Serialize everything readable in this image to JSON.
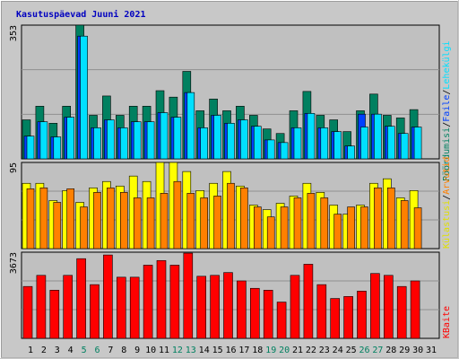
{
  "chart_data": [
    {
      "type": "bar",
      "title": "Kasutuspäevad Juuni 2021",
      "ylim": [
        0,
        353
      ],
      "yticks": [
        353
      ],
      "grid": true,
      "legend_separator": "/",
      "series": [
        {
          "name": "Lehekülgi",
          "color": "#00e0ff",
          "role": "front",
          "values": [
            60,
            98,
            58,
            110,
            324,
            82,
            103,
            82,
            98,
            98,
            122,
            110,
            175,
            82,
            115,
            94,
            103,
            86,
            50,
            43,
            82,
            120,
            82,
            72,
            34,
            84,
            118,
            86,
            67,
            84,
            null
          ]
        },
        {
          "name": "Faile",
          "color": "#0040ff",
          "role": "middle",
          "values": [
            60,
            98,
            58,
            110,
            324,
            82,
            103,
            82,
            98,
            98,
            122,
            110,
            175,
            82,
            115,
            94,
            103,
            86,
            50,
            43,
            82,
            120,
            82,
            72,
            34,
            118,
            118,
            86,
            67,
            84,
            null
          ]
        },
        {
          "name": "Pöördumisi",
          "color": "#008060",
          "role": "back",
          "values": [
            103,
            139,
            94,
            139,
            353,
            115,
            166,
            115,
            139,
            139,
            180,
            163,
            231,
            127,
            158,
            127,
            139,
            115,
            79,
            67,
            127,
            178,
            115,
            103,
            72,
            127,
            171,
            115,
            108,
            130,
            null
          ]
        }
      ]
    },
    {
      "type": "bar",
      "ylim": [
        0,
        95
      ],
      "yticks": [
        95
      ],
      "grid": true,
      "legend_separator": "/",
      "series": [
        {
          "name": "Arvutid",
          "color": "#ff8000",
          "role": "front",
          "values": [
            66,
            67,
            51,
            66,
            46,
            62,
            67,
            62,
            56,
            56,
            61,
            74,
            61,
            56,
            58,
            72,
            67,
            46,
            35,
            46,
            56,
            61,
            56,
            38,
            46,
            46,
            67,
            67,
            53,
            45,
            null
          ]
        },
        {
          "name": "Külastusi",
          "color": "#ffff00",
          "role": "back",
          "values": [
            72,
            72,
            53,
            64,
            51,
            67,
            74,
            69,
            80,
            74,
            95,
            95,
            85,
            64,
            72,
            85,
            69,
            48,
            43,
            50,
            58,
            72,
            62,
            48,
            38,
            48,
            72,
            77,
            56,
            64,
            null
          ]
        }
      ]
    },
    {
      "type": "bar",
      "ylim": [
        0,
        3673
      ],
      "yticks": [
        3673
      ],
      "grid": true,
      "categories": [
        "1",
        "2",
        "3",
        "4",
        "5",
        "6",
        "7",
        "8",
        "9",
        "10",
        "11",
        "12",
        "13",
        "14",
        "15",
        "16",
        "17",
        "18",
        "19",
        "20",
        "21",
        "22",
        "23",
        "24",
        "25",
        "26",
        "27",
        "28",
        "29",
        "30",
        "31"
      ],
      "category_colors": [
        "#000",
        "#000",
        "#000",
        "#000",
        "#008060",
        "#008060",
        "#000",
        "#000",
        "#000",
        "#000",
        "#000",
        "#008060",
        "#008060",
        "#000",
        "#000",
        "#000",
        "#000",
        "#000",
        "#008060",
        "#008060",
        "#000",
        "#000",
        "#000",
        "#000",
        "#000",
        "#008060",
        "#008060",
        "#000",
        "#000",
        "#000",
        "#000"
      ],
      "series": [
        {
          "name": "KBaite",
          "color": "#ff0000",
          "role": "single",
          "values": [
            2212,
            2686,
            2054,
            2686,
            3397,
            2291,
            3555,
            2607,
            2607,
            3120,
            3318,
            3120,
            3633,
            2647,
            2686,
            2805,
            2449,
            2133,
            2054,
            1547,
            2686,
            3160,
            2291,
            1700,
            1785,
            2014,
            2765,
            2686,
            2212,
            2449,
            null
          ]
        }
      ]
    }
  ]
}
